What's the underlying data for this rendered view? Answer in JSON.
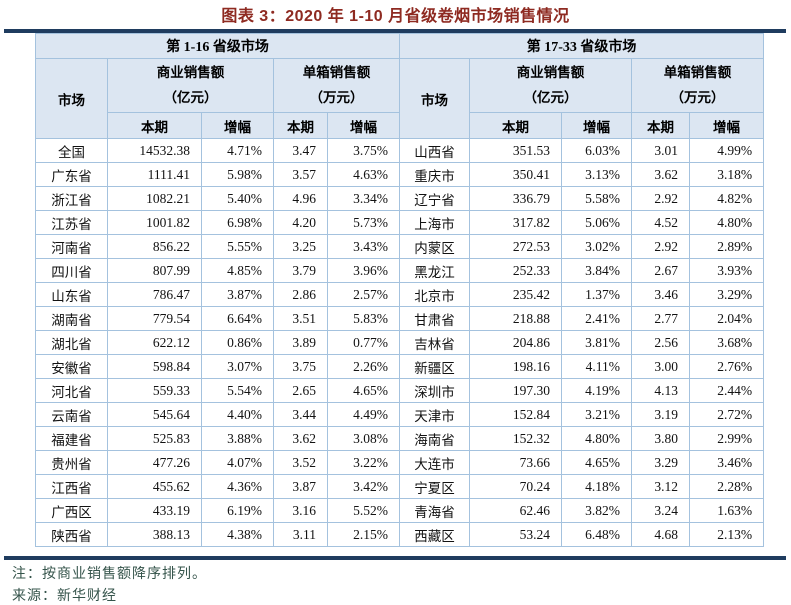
{
  "title": "图表 3：2020 年 1-10 月省级卷烟市场销售情况",
  "table": {
    "labels": {
      "market": "市场",
      "commercial_sales": "商业销售额",
      "commercial_unit": "（亿元）",
      "per_box_sales": "单箱销售额",
      "per_box_unit": "（万元）",
      "current_period": "本期",
      "growth": "增幅"
    },
    "left": {
      "group_header": "第 1-16 省级市场",
      "rows": [
        [
          "全国",
          "14532.38",
          "4.71%",
          "3.47",
          "3.75%"
        ],
        [
          "广东省",
          "1111.41",
          "5.98%",
          "3.57",
          "4.63%"
        ],
        [
          "浙江省",
          "1082.21",
          "5.40%",
          "4.96",
          "3.34%"
        ],
        [
          "江苏省",
          "1001.82",
          "6.98%",
          "4.20",
          "5.73%"
        ],
        [
          "河南省",
          "856.22",
          "5.55%",
          "3.25",
          "3.43%"
        ],
        [
          "四川省",
          "807.99",
          "4.85%",
          "3.79",
          "3.96%"
        ],
        [
          "山东省",
          "786.47",
          "3.87%",
          "2.86",
          "2.57%"
        ],
        [
          "湖南省",
          "779.54",
          "6.64%",
          "3.51",
          "5.83%"
        ],
        [
          "湖北省",
          "622.12",
          "0.86%",
          "3.89",
          "0.77%"
        ],
        [
          "安徽省",
          "598.84",
          "3.07%",
          "3.75",
          "2.26%"
        ],
        [
          "河北省",
          "559.33",
          "5.54%",
          "2.65",
          "4.65%"
        ],
        [
          "云南省",
          "545.64",
          "4.40%",
          "3.44",
          "4.49%"
        ],
        [
          "福建省",
          "525.83",
          "3.88%",
          "3.62",
          "3.08%"
        ],
        [
          "贵州省",
          "477.26",
          "4.07%",
          "3.52",
          "3.22%"
        ],
        [
          "江西省",
          "455.62",
          "4.36%",
          "3.87",
          "3.42%"
        ],
        [
          "广西区",
          "433.19",
          "6.19%",
          "3.16",
          "5.52%"
        ],
        [
          "陕西省",
          "388.13",
          "4.38%",
          "3.11",
          "2.15%"
        ]
      ]
    },
    "right": {
      "group_header": "第 17-33 省级市场",
      "rows": [
        [
          "山西省",
          "351.53",
          "6.03%",
          "3.01",
          "4.99%"
        ],
        [
          "重庆市",
          "350.41",
          "3.13%",
          "3.62",
          "3.18%"
        ],
        [
          "辽宁省",
          "336.79",
          "5.58%",
          "2.92",
          "4.82%"
        ],
        [
          "上海市",
          "317.82",
          "5.06%",
          "4.52",
          "4.80%"
        ],
        [
          "内蒙区",
          "272.53",
          "3.02%",
          "2.92",
          "2.89%"
        ],
        [
          "黑龙江",
          "252.33",
          "3.84%",
          "2.67",
          "3.93%"
        ],
        [
          "北京市",
          "235.42",
          "1.37%",
          "3.46",
          "3.29%"
        ],
        [
          "甘肃省",
          "218.88",
          "2.41%",
          "2.77",
          "2.04%"
        ],
        [
          "吉林省",
          "204.86",
          "3.81%",
          "2.56",
          "3.68%"
        ],
        [
          "新疆区",
          "198.16",
          "4.11%",
          "3.00",
          "2.76%"
        ],
        [
          "深圳市",
          "197.30",
          "4.19%",
          "4.13",
          "2.44%"
        ],
        [
          "天津市",
          "152.84",
          "3.21%",
          "3.19",
          "2.72%"
        ],
        [
          "海南省",
          "152.32",
          "4.80%",
          "3.80",
          "2.99%"
        ],
        [
          "大连市",
          "73.66",
          "4.65%",
          "3.29",
          "3.46%"
        ],
        [
          "宁夏区",
          "70.24",
          "4.18%",
          "3.12",
          "2.28%"
        ],
        [
          "青海省",
          "62.46",
          "3.82%",
          "3.24",
          "1.63%"
        ],
        [
          "西藏区",
          "53.24",
          "6.48%",
          "4.68",
          "2.13%"
        ]
      ]
    }
  },
  "notes": {
    "note": "注：按商业销售额降序排列。",
    "source": "来源：新华财经"
  },
  "colors": {
    "title_text": "#8e2a21",
    "rule_navy": "#1f3c5f",
    "header_bg": "#dce6f2",
    "cell_border": "#a4c2de"
  }
}
